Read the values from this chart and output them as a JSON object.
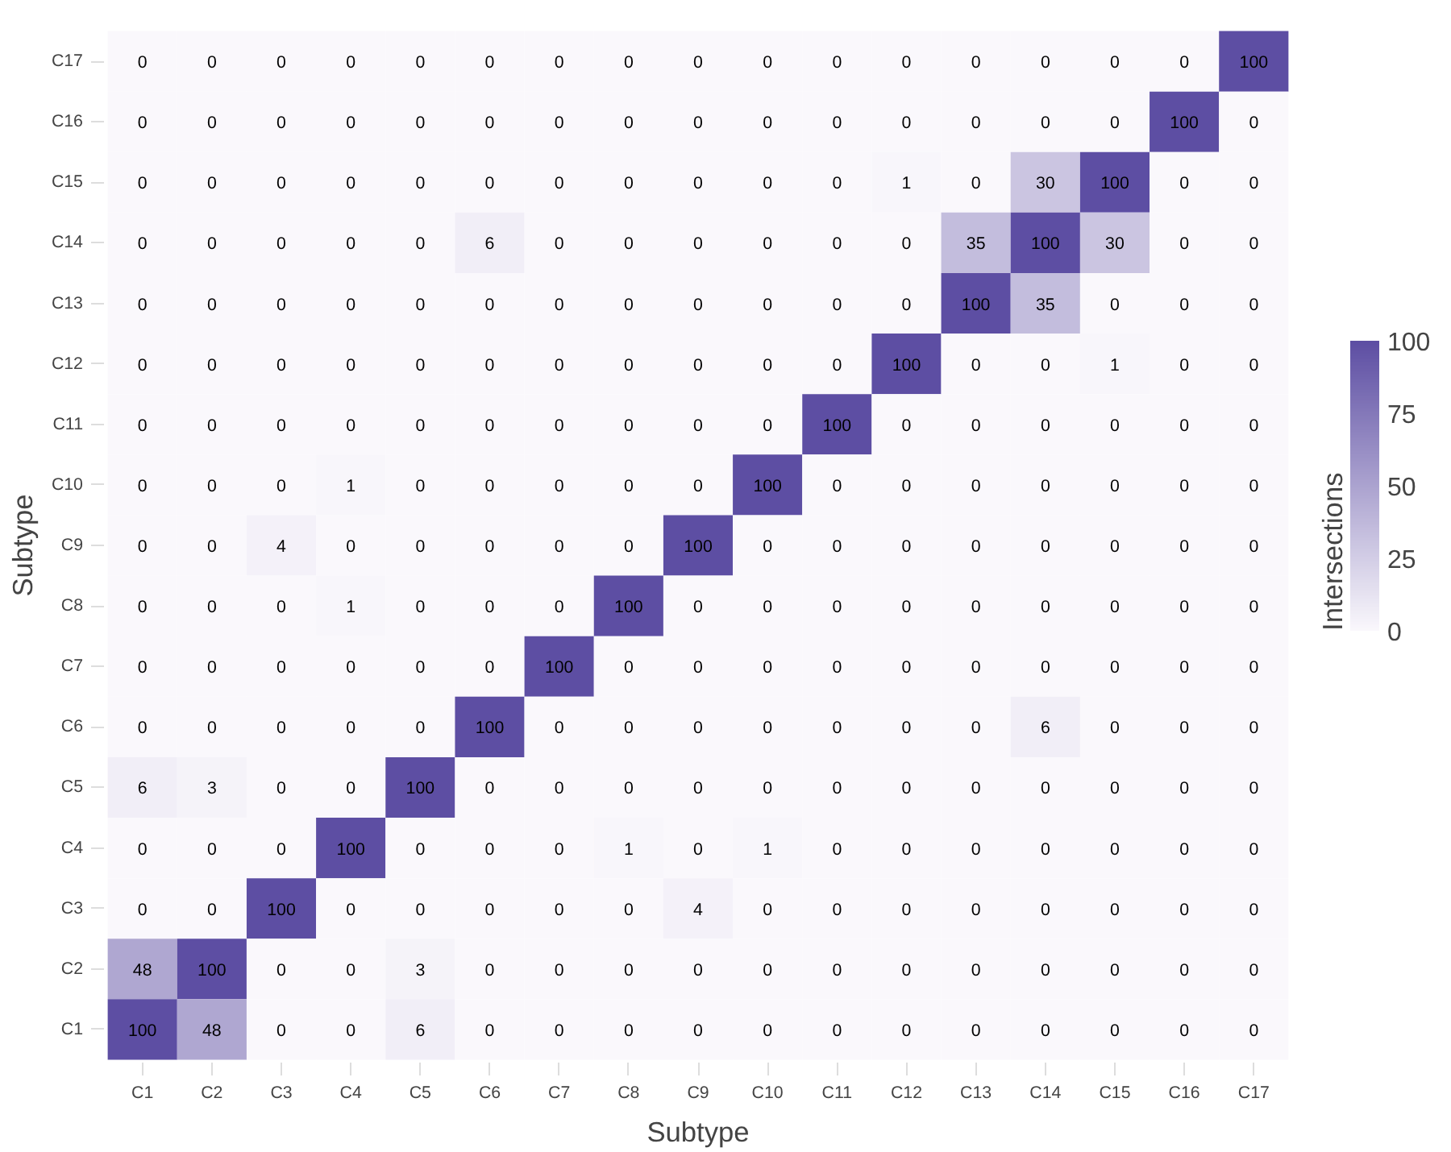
{
  "chart_data": {
    "type": "heatmap",
    "xlabel": "Subtype",
    "ylabel": "Subtype",
    "clabel": "Intersections",
    "clim": [
      0,
      100
    ],
    "cticks": [
      0,
      25,
      50,
      75,
      100
    ],
    "data_labels": true,
    "grid": false,
    "categories": [
      "C1",
      "C2",
      "C3",
      "C4",
      "C5",
      "C6",
      "C7",
      "C8",
      "C9",
      "C10",
      "C11",
      "C12",
      "C13",
      "C14",
      "C15",
      "C16",
      "C17"
    ],
    "y_categories": [
      "C17",
      "C16",
      "C15",
      "C14",
      "C13",
      "C12",
      "C11",
      "C10",
      "C9",
      "C8",
      "C7",
      "C6",
      "C5",
      "C4",
      "C3",
      "C2",
      "C1"
    ],
    "cells": [
      [
        0,
        0,
        0,
        0,
        0,
        0,
        0,
        0,
        0,
        0,
        0,
        0,
        0,
        0,
        0,
        0,
        100
      ],
      [
        0,
        0,
        0,
        0,
        0,
        0,
        0,
        0,
        0,
        0,
        0,
        0,
        0,
        0,
        0,
        100,
        0
      ],
      [
        0,
        0,
        0,
        0,
        0,
        0,
        0,
        0,
        0,
        0,
        0,
        1,
        0,
        30,
        100,
        0,
        0
      ],
      [
        0,
        0,
        0,
        0,
        0,
        6,
        0,
        0,
        0,
        0,
        0,
        0,
        35,
        100,
        30,
        0,
        0
      ],
      [
        0,
        0,
        0,
        0,
        0,
        0,
        0,
        0,
        0,
        0,
        0,
        0,
        100,
        35,
        0,
        0,
        0
      ],
      [
        0,
        0,
        0,
        0,
        0,
        0,
        0,
        0,
        0,
        0,
        0,
        100,
        0,
        0,
        1,
        0,
        0
      ],
      [
        0,
        0,
        0,
        0,
        0,
        0,
        0,
        0,
        0,
        0,
        100,
        0,
        0,
        0,
        0,
        0,
        0
      ],
      [
        0,
        0,
        0,
        1,
        0,
        0,
        0,
        0,
        0,
        100,
        0,
        0,
        0,
        0,
        0,
        0,
        0
      ],
      [
        0,
        0,
        4,
        0,
        0,
        0,
        0,
        0,
        100,
        0,
        0,
        0,
        0,
        0,
        0,
        0,
        0
      ],
      [
        0,
        0,
        0,
        1,
        0,
        0,
        0,
        100,
        0,
        0,
        0,
        0,
        0,
        0,
        0,
        0,
        0
      ],
      [
        0,
        0,
        0,
        0,
        0,
        0,
        100,
        0,
        0,
        0,
        0,
        0,
        0,
        0,
        0,
        0,
        0
      ],
      [
        0,
        0,
        0,
        0,
        0,
        100,
        0,
        0,
        0,
        0,
        0,
        0,
        0,
        6,
        0,
        0,
        0
      ],
      [
        6,
        3,
        0,
        0,
        100,
        0,
        0,
        0,
        0,
        0,
        0,
        0,
        0,
        0,
        0,
        0,
        0
      ],
      [
        0,
        0,
        0,
        100,
        0,
        0,
        0,
        1,
        0,
        1,
        0,
        0,
        0,
        0,
        0,
        0,
        0
      ],
      [
        0,
        0,
        100,
        0,
        0,
        0,
        0,
        0,
        4,
        0,
        0,
        0,
        0,
        0,
        0,
        0,
        0
      ],
      [
        48,
        100,
        0,
        0,
        3,
        0,
        0,
        0,
        0,
        0,
        0,
        0,
        0,
        0,
        0,
        0,
        0
      ],
      [
        100,
        48,
        0,
        0,
        6,
        0,
        0,
        0,
        0,
        0,
        0,
        0,
        0,
        0,
        0,
        0,
        0
      ]
    ]
  }
}
